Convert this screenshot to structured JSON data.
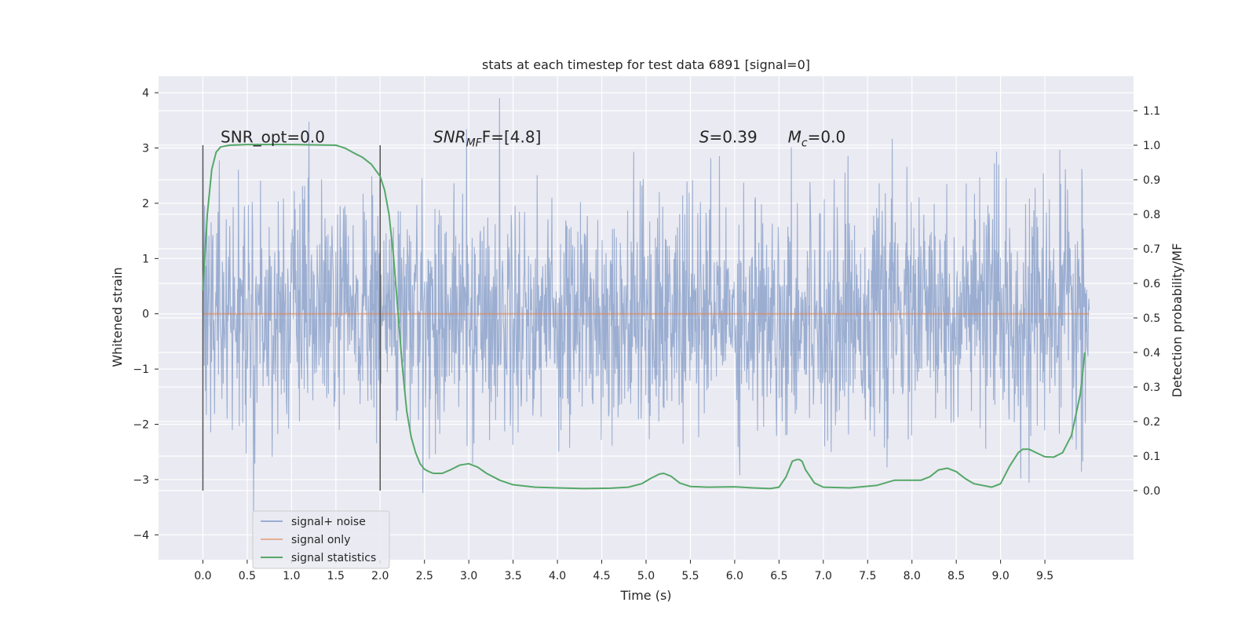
{
  "chart_data": {
    "type": "line",
    "title": "stats at each timestep for test data 6891 [signal=0]",
    "xlabel": "Time (s)",
    "ylabel": "Whitened strain",
    "ylabel_right": "Detection probability/MF",
    "xlim": [
      -0.5,
      10.5
    ],
    "ylim": [
      -4.45,
      4.3
    ],
    "ylim_right": [
      -0.2,
      1.2
    ],
    "x_ticks": [
      0.0,
      0.5,
      1.0,
      1.5,
      2.0,
      2.5,
      3.0,
      3.5,
      4.0,
      4.5,
      5.0,
      5.5,
      6.0,
      6.5,
      7.0,
      7.5,
      8.0,
      8.5,
      9.0,
      9.5
    ],
    "x_tick_labels": [
      "0.0",
      "0.5",
      "1.0",
      "1.5",
      "2.0",
      "2.5",
      "3.0",
      "3.5",
      "4.0",
      "4.5",
      "5.0",
      "5.5",
      "6.0",
      "6.5",
      "7.0",
      "7.5",
      "8.0",
      "8.5",
      "9.0",
      "9.5"
    ],
    "y_ticks": [
      4,
      3,
      2,
      1,
      0,
      -1,
      -2,
      -3,
      -4
    ],
    "y_tick_labels": [
      "4",
      "3",
      "2",
      "1",
      "0",
      "−1",
      "−2",
      "−3",
      "−4"
    ],
    "y2_ticks": [
      1.1,
      1.0,
      0.9,
      0.8,
      0.7,
      0.6,
      0.5,
      0.4,
      0.3,
      0.2,
      0.1,
      0.0
    ],
    "y2_tick_labels": [
      "1.1",
      "1.0",
      "0.9",
      "0.8",
      "0.7",
      "0.6",
      "0.5",
      "0.4",
      "0.3",
      "0.2",
      "0.1",
      "0.0"
    ],
    "grid": true,
    "legend_position": "bottom-left",
    "series": [
      {
        "name": "signal+ noise",
        "axis": "left",
        "color": "#4c72b0",
        "style": "noise",
        "x_range": [
          0.0,
          10.0
        ],
        "std": 1.0,
        "n_points": 2048
      },
      {
        "name": "signal only",
        "axis": "left",
        "color": "#dd8452",
        "x": [
          0.0,
          10.0
        ],
        "y": [
          0.0,
          0.0
        ]
      },
      {
        "name": "signal statistics",
        "axis": "right",
        "color": "#55a868",
        "x": [
          0.0,
          0.05,
          0.1,
          0.15,
          0.2,
          0.3,
          0.5,
          1.0,
          1.5,
          1.6,
          1.7,
          1.8,
          1.9,
          2.0,
          2.05,
          2.1,
          2.15,
          2.2,
          2.25,
          2.3,
          2.35,
          2.4,
          2.45,
          2.5,
          2.55,
          2.6,
          2.7,
          2.8,
          2.9,
          3.0,
          3.1,
          3.2,
          3.35,
          3.5,
          3.75,
          4.0,
          4.3,
          4.6,
          4.8,
          4.95,
          5.05,
          5.15,
          5.2,
          5.28,
          5.38,
          5.5,
          5.7,
          6.0,
          6.2,
          6.4,
          6.5,
          6.58,
          6.65,
          6.7,
          6.73,
          6.76,
          6.8,
          6.9,
          7.0,
          7.3,
          7.6,
          7.8,
          7.9,
          8.1,
          8.2,
          8.3,
          8.4,
          8.5,
          8.6,
          8.7,
          8.9,
          9.0,
          9.1,
          9.2,
          9.25,
          9.32,
          9.4,
          9.5,
          9.6,
          9.7,
          9.8,
          9.9,
          9.95
        ],
        "y": [
          0.58,
          0.8,
          0.93,
          0.98,
          0.995,
          1.0,
          1.002,
          1.002,
          1.0,
          0.992,
          0.978,
          0.965,
          0.945,
          0.91,
          0.87,
          0.8,
          0.68,
          0.52,
          0.36,
          0.23,
          0.155,
          0.11,
          0.078,
          0.062,
          0.055,
          0.05,
          0.05,
          0.061,
          0.074,
          0.078,
          0.068,
          0.05,
          0.03,
          0.017,
          0.01,
          0.008,
          0.006,
          0.007,
          0.01,
          0.02,
          0.035,
          0.048,
          0.05,
          0.042,
          0.022,
          0.012,
          0.01,
          0.011,
          0.008,
          0.006,
          0.01,
          0.04,
          0.085,
          0.09,
          0.09,
          0.085,
          0.06,
          0.022,
          0.01,
          0.008,
          0.015,
          0.03,
          0.03,
          0.03,
          0.04,
          0.06,
          0.065,
          0.055,
          0.035,
          0.02,
          0.01,
          0.02,
          0.07,
          0.11,
          0.12,
          0.12,
          0.11,
          0.098,
          0.097,
          0.11,
          0.16,
          0.28,
          0.4
        ]
      }
    ],
    "vlines": [
      {
        "x": 0.0,
        "y_range": [
          -3.2,
          3.05
        ]
      },
      {
        "x": 2.0,
        "y_range": [
          -3.2,
          3.05
        ]
      }
    ],
    "annotations": [
      {
        "text_plain": "SNR_opt=0.0",
        "x": 0.2,
        "y": 3.1
      },
      {
        "text_prefix": "SNR",
        "text_sub": "MF",
        "text_suffix": "F=[4.8]",
        "x": 2.6,
        "y": 3.1
      },
      {
        "text_prefix": "S",
        "text_sub": "",
        "text_suffix": "=0.39",
        "x": 5.6,
        "y": 3.1
      },
      {
        "text_prefix": "M",
        "text_sub": "c",
        "text_suffix": "=0.0",
        "x": 6.6,
        "y": 3.1
      }
    ]
  }
}
